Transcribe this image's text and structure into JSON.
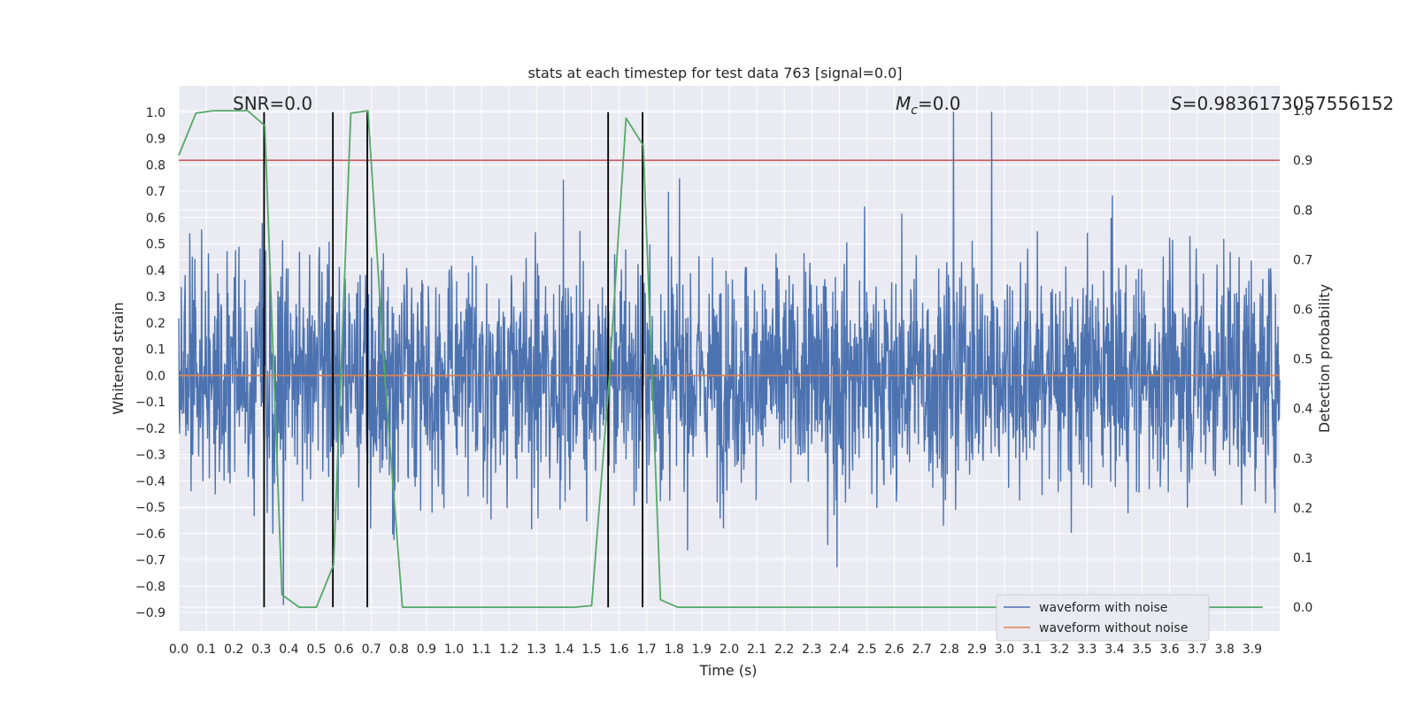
{
  "chart_data": {
    "type": "line",
    "title": "stats at each timestep for test data 763 [signal=0.0]",
    "xlabel": "Time (s)",
    "ylabel": "Whitened strain",
    "y2label": "Detection probability",
    "xlim": [
      0.0,
      4.0
    ],
    "ylim": [
      -0.97,
      1.1
    ],
    "y2lim": [
      -0.048,
      1.05
    ],
    "x_ticks": [
      "0.0",
      "0.1",
      "0.2",
      "0.3",
      "0.4",
      "0.5",
      "0.6",
      "0.7",
      "0.8",
      "0.9",
      "1.0",
      "1.1",
      "1.2",
      "1.3",
      "1.4",
      "1.5",
      "1.6",
      "1.7",
      "1.8",
      "1.9",
      "2.0",
      "2.1",
      "2.2",
      "2.3",
      "2.4",
      "2.5",
      "2.6",
      "2.7",
      "2.8",
      "2.9",
      "3.0",
      "3.1",
      "3.2",
      "3.3",
      "3.4",
      "3.5",
      "3.6",
      "3.7",
      "3.8",
      "3.9"
    ],
    "y_ticks": [
      "1.0",
      "0.9",
      "0.8",
      "0.7",
      "0.6",
      "0.5",
      "0.4",
      "0.3",
      "0.2",
      "0.1",
      "0.0",
      "−0.1",
      "−0.2",
      "−0.3",
      "−0.4",
      "−0.5",
      "−0.6",
      "−0.7",
      "−0.8",
      "−0.9"
    ],
    "y2_ticks": [
      "1.0",
      "0.9",
      "0.8",
      "0.7",
      "0.6",
      "0.5",
      "0.4",
      "0.3",
      "0.2",
      "0.1",
      "0.0"
    ],
    "annotations": {
      "snr": "SNR=0.0",
      "mc_symbol": "M",
      "mc_sub": "c",
      "mc_value": "=0.0",
      "s_symbol": "S",
      "s_value": "=0.9836173057556152"
    },
    "threshold": {
      "axis": "right",
      "value": 0.9,
      "color": "#c44e52"
    },
    "vertical_markers": [
      0.31,
      0.56,
      0.685,
      1.56,
      1.685
    ],
    "series": [
      {
        "name": "waveform with noise",
        "color": "#4c72b0",
        "kind": "noise",
        "peak_min": -0.87,
        "peak_max": 1.0,
        "sample_rate_hz": 2048,
        "duration_s": 4.0
      },
      {
        "name": "waveform without noise",
        "color": "#dd8452",
        "kind": "constant",
        "value": 0.0
      },
      {
        "name": "",
        "color": "#55a868",
        "axis": "right",
        "kind": "probability",
        "x": [
          0.0,
          0.0625,
          0.125,
          0.1875,
          0.25,
          0.3125,
          0.375,
          0.4375,
          0.5,
          0.5625,
          0.625,
          0.6875,
          0.75,
          0.8125,
          0.875,
          0.9375,
          1.0,
          1.0625,
          1.125,
          1.1875,
          1.25,
          1.3125,
          1.375,
          1.4375,
          1.5,
          1.5625,
          1.625,
          1.6875,
          1.75,
          1.8125,
          1.875,
          1.9375,
          2.0,
          2.0625,
          2.125,
          2.1875,
          2.25,
          2.3125,
          2.375,
          2.4375,
          2.5,
          2.5625,
          2.625,
          2.6875,
          2.75,
          2.8125,
          2.875,
          2.9375,
          3.0,
          3.0625,
          3.125,
          3.1875,
          3.25,
          3.3125,
          3.375,
          3.4375,
          3.5,
          3.5625,
          3.625,
          3.6875,
          3.75,
          3.8125,
          3.875,
          3.9375
        ],
        "y": [
          0.91,
          0.995,
          1.0,
          1.0,
          1.0,
          0.97,
          0.025,
          0.0,
          0.0,
          0.085,
          0.995,
          1.0,
          0.45,
          0.0,
          0.0,
          0.0,
          0.0,
          0.0,
          0.0,
          0.0,
          0.0,
          0.0,
          0.0,
          0.0,
          0.003,
          0.45,
          0.985,
          0.93,
          0.015,
          0.0,
          0.0,
          0.0,
          0.0,
          0.0,
          0.0,
          0.0,
          0.0,
          0.0,
          0.0,
          0.0,
          0.0,
          0.0,
          0.0,
          0.0,
          0.0,
          0.0,
          0.0,
          0.0,
          0.0,
          0.0,
          0.0,
          0.0,
          0.0,
          0.0,
          0.0,
          0.0,
          0.0,
          0.0,
          0.0,
          0.0,
          0.0,
          0.0,
          0.0,
          0.0
        ]
      }
    ],
    "legend": {
      "placement": "lower-right",
      "entries": [
        "waveform with noise",
        "waveform without noise"
      ]
    },
    "grid": true,
    "colors": {
      "background": "#eaeaf2",
      "grid": "#ffffff",
      "marker": "#000000"
    }
  }
}
